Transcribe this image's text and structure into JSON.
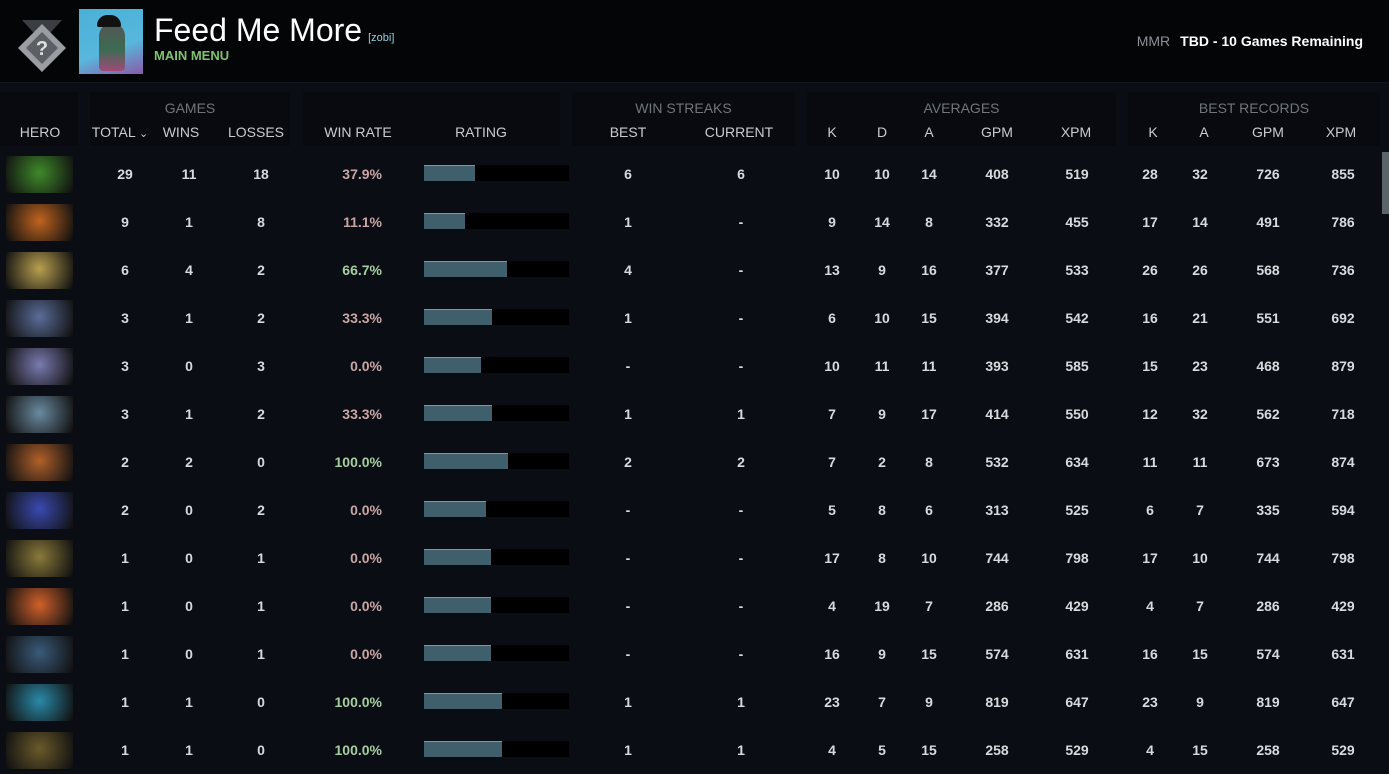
{
  "header": {
    "player_name": "Feed Me More",
    "tag": "[zobi]",
    "subtitle": "MAIN MENU",
    "mmr_label": "MMR",
    "mmr_value": "TBD - 10 Games Remaining",
    "medal_icon": "uncalibrated-medal-icon"
  },
  "groups": {
    "games": "GAMES",
    "win_streaks": "WIN STREAKS",
    "averages": "AVERAGES",
    "best_records": "BEST RECORDS"
  },
  "columns": {
    "hero": "HERO",
    "total": "TOTAL",
    "total_sort": "⌄",
    "wins": "WINS",
    "losses": "LOSSES",
    "win_rate": "WIN RATE",
    "rating": "RATING",
    "best": "BEST",
    "current": "CURRENT",
    "avg_k": "K",
    "avg_d": "D",
    "avg_a": "A",
    "avg_gpm": "GPM",
    "avg_xpm": "XPM",
    "best_k": "K",
    "best_a": "A",
    "best_gpm": "GPM",
    "best_xpm": "XPM"
  },
  "colors": {
    "win_rate_low": "#c9a6a6",
    "win_rate_high": "#a6cfa0",
    "rating_fill": "#3f5f6c"
  },
  "rows": [
    {
      "hero_color": "#3f8a2a",
      "total": "29",
      "wins": "11",
      "losses": "18",
      "win_rate": "37.9%",
      "rating": 0.35,
      "best": "6",
      "current": "6",
      "k": "10",
      "d": "10",
      "a": "14",
      "gpm": "408",
      "xpm": "519",
      "bk": "28",
      "ba": "32",
      "bgpm": "726",
      "bxpm": "855"
    },
    {
      "hero_color": "#c0641e",
      "total": "9",
      "wins": "1",
      "losses": "8",
      "win_rate": "11.1%",
      "rating": 0.28,
      "best": "1",
      "current": "-",
      "k": "9",
      "d": "14",
      "a": "8",
      "gpm": "332",
      "xpm": "455",
      "bk": "17",
      "ba": "14",
      "bgpm": "491",
      "bxpm": "786"
    },
    {
      "hero_color": "#b8a050",
      "total": "6",
      "wins": "4",
      "losses": "2",
      "win_rate": "66.7%",
      "rating": 0.57,
      "best": "4",
      "current": "-",
      "k": "13",
      "d": "9",
      "a": "16",
      "gpm": "377",
      "xpm": "533",
      "bk": "26",
      "ba": "26",
      "bgpm": "568",
      "bxpm": "736"
    },
    {
      "hero_color": "#5a6c98",
      "total": "3",
      "wins": "1",
      "losses": "2",
      "win_rate": "33.3%",
      "rating": 0.47,
      "best": "1",
      "current": "-",
      "k": "6",
      "d": "10",
      "a": "15",
      "gpm": "394",
      "xpm": "542",
      "bk": "16",
      "ba": "21",
      "bgpm": "551",
      "bxpm": "692"
    },
    {
      "hero_color": "#7a7ab0",
      "total": "3",
      "wins": "0",
      "losses": "3",
      "win_rate": "0.0%",
      "rating": 0.39,
      "best": "-",
      "current": "-",
      "k": "10",
      "d": "11",
      "a": "11",
      "gpm": "393",
      "xpm": "585",
      "bk": "15",
      "ba": "23",
      "bgpm": "468",
      "bxpm": "879"
    },
    {
      "hero_color": "#6a8aa0",
      "total": "3",
      "wins": "1",
      "losses": "2",
      "win_rate": "33.3%",
      "rating": 0.47,
      "best": "1",
      "current": "1",
      "k": "7",
      "d": "9",
      "a": "17",
      "gpm": "414",
      "xpm": "550",
      "bk": "12",
      "ba": "32",
      "bgpm": "562",
      "bxpm": "718"
    },
    {
      "hero_color": "#b0602a",
      "total": "2",
      "wins": "2",
      "losses": "0",
      "win_rate": "100.0%",
      "rating": 0.58,
      "best": "2",
      "current": "2",
      "k": "7",
      "d": "2",
      "a": "8",
      "gpm": "532",
      "xpm": "634",
      "bk": "11",
      "ba": "11",
      "bgpm": "673",
      "bxpm": "874"
    },
    {
      "hero_color": "#3a4ab0",
      "total": "2",
      "wins": "0",
      "losses": "2",
      "win_rate": "0.0%",
      "rating": 0.43,
      "best": "-",
      "current": "-",
      "k": "5",
      "d": "8",
      "a": "6",
      "gpm": "313",
      "xpm": "525",
      "bk": "6",
      "ba": "7",
      "bgpm": "335",
      "bxpm": "594"
    },
    {
      "hero_color": "#8a7a3a",
      "total": "1",
      "wins": "0",
      "losses": "1",
      "win_rate": "0.0%",
      "rating": 0.46,
      "best": "-",
      "current": "-",
      "k": "17",
      "d": "8",
      "a": "10",
      "gpm": "744",
      "xpm": "798",
      "bk": "17",
      "ba": "10",
      "bgpm": "744",
      "bxpm": "798"
    },
    {
      "hero_color": "#d0602a",
      "total": "1",
      "wins": "0",
      "losses": "1",
      "win_rate": "0.0%",
      "rating": 0.46,
      "best": "-",
      "current": "-",
      "k": "4",
      "d": "19",
      "a": "7",
      "gpm": "286",
      "xpm": "429",
      "bk": "4",
      "ba": "7",
      "bgpm": "286",
      "bxpm": "429"
    },
    {
      "hero_color": "#3a5a7a",
      "total": "1",
      "wins": "0",
      "losses": "1",
      "win_rate": "0.0%",
      "rating": 0.46,
      "best": "-",
      "current": "-",
      "k": "16",
      "d": "9",
      "a": "15",
      "gpm": "574",
      "xpm": "631",
      "bk": "16",
      "ba": "15",
      "bgpm": "574",
      "bxpm": "631"
    },
    {
      "hero_color": "#2a8aa8",
      "total": "1",
      "wins": "1",
      "losses": "0",
      "win_rate": "100.0%",
      "rating": 0.54,
      "best": "1",
      "current": "1",
      "k": "23",
      "d": "7",
      "a": "9",
      "gpm": "819",
      "xpm": "647",
      "bk": "23",
      "ba": "9",
      "bgpm": "819",
      "bxpm": "647"
    },
    {
      "hero_color": "#6a5a2a",
      "total": "1",
      "wins": "1",
      "losses": "0",
      "win_rate": "100.0%",
      "rating": 0.54,
      "best": "1",
      "current": "1",
      "k": "4",
      "d": "5",
      "a": "15",
      "gpm": "258",
      "xpm": "529",
      "bk": "4",
      "ba": "15",
      "bgpm": "258",
      "bxpm": "529"
    }
  ]
}
